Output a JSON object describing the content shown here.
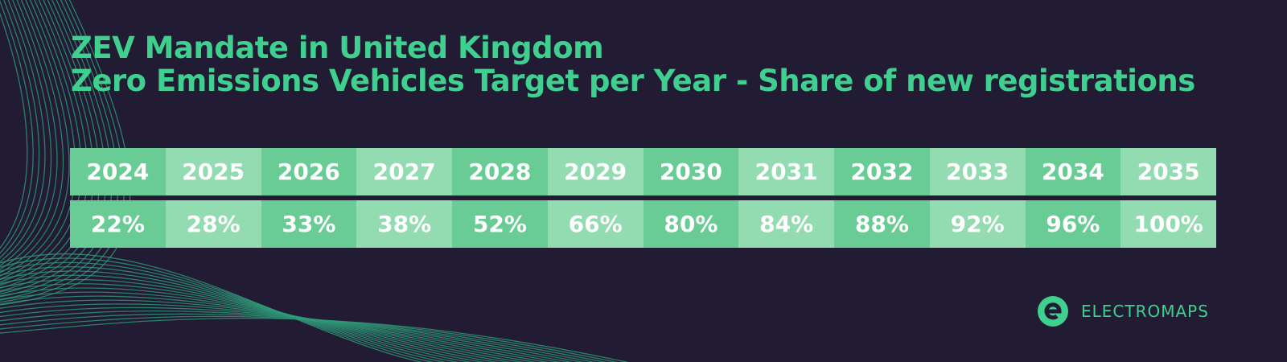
{
  "header": {
    "title": [
      "ZEV Mandate in United Kingdom",
      "Zero Emissions Vehicles Target per Year - Share of new registrations"
    ]
  },
  "table": {
    "years": [
      "2024",
      "2025",
      "2026",
      "2027",
      "2028",
      "2029",
      "2030",
      "2031",
      "2032",
      "2033",
      "2034",
      "2035"
    ],
    "shares": [
      "22%",
      "28%",
      "33%",
      "38%",
      "52%",
      "66%",
      "80%",
      "84%",
      "88%",
      "92%",
      "96%",
      "100%"
    ]
  },
  "logo": {
    "text": "ELECTROMAPS"
  }
}
